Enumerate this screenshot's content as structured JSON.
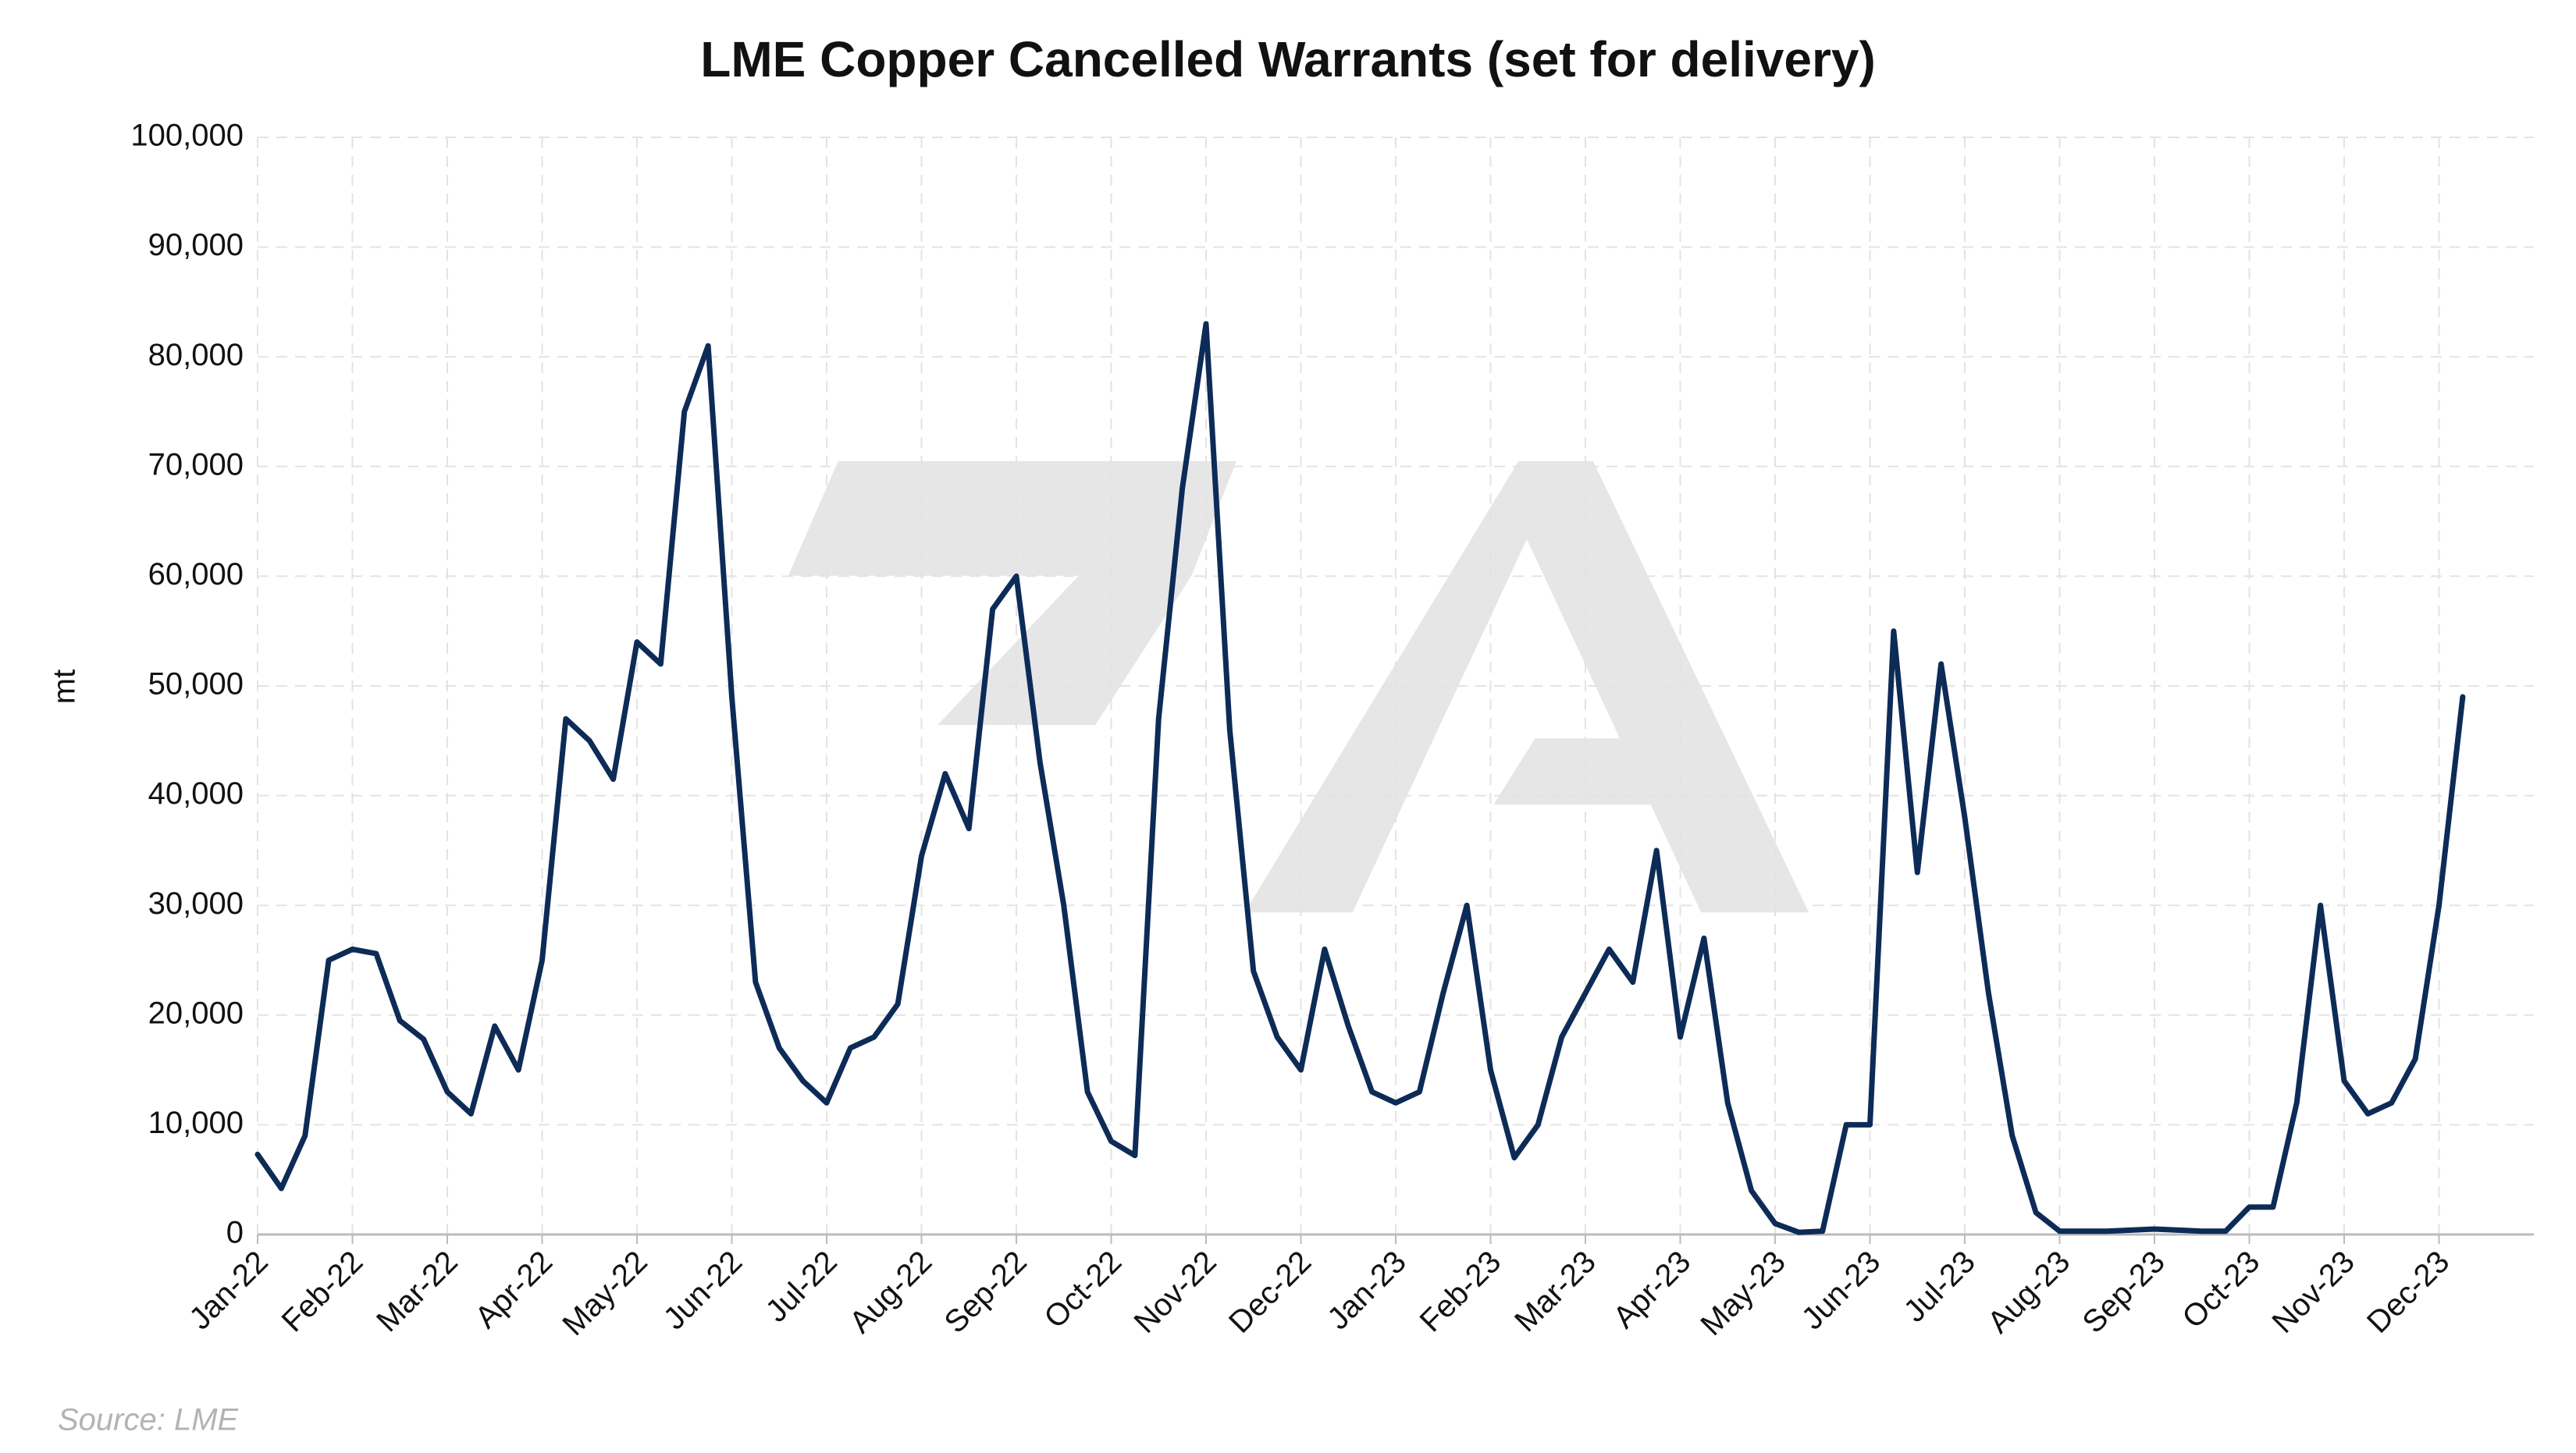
{
  "chart_data": {
    "type": "line",
    "title": "LME Copper Cancelled Warrants (set for delivery)",
    "y_label": "mt",
    "source": "Source: LME",
    "categories": [
      "Jan-22",
      null,
      null,
      null,
      "Feb-22",
      null,
      null,
      null,
      "Mar-22",
      null,
      null,
      null,
      "Apr-22",
      null,
      null,
      null,
      "May-22",
      null,
      null,
      null,
      "Jun-22",
      null,
      null,
      null,
      "Jul-22",
      null,
      null,
      null,
      "Aug-22",
      null,
      null,
      null,
      "Sep-22",
      null,
      null,
      null,
      "Oct-22",
      null,
      null,
      null,
      "Nov-22",
      null,
      null,
      null,
      "Dec-22",
      null,
      null,
      null,
      "Jan-23",
      null,
      null,
      null,
      "Feb-23",
      null,
      null,
      null,
      "Mar-23",
      null,
      null,
      null,
      "Apr-23",
      null,
      null,
      null,
      "May-23",
      null,
      null,
      null,
      "Jun-23",
      null,
      null,
      null,
      "Jul-23",
      null,
      null,
      null,
      "Aug-23",
      null,
      null,
      null,
      "Sep-23",
      null,
      null,
      null,
      "Oct-23",
      null,
      null,
      null,
      "Nov-23",
      null,
      null,
      null,
      "Dec-23",
      null
    ],
    "series": [
      {
        "name": "Cancelled warrants",
        "color": "#0d2b57",
        "values": [
          7300,
          4200,
          9000,
          25000,
          26000,
          25600,
          19500,
          17800,
          13000,
          11000,
          19000,
          15000,
          25000,
          47000,
          45000,
          41500,
          54000,
          52000,
          75000,
          81000,
          49000,
          23000,
          17000,
          14000,
          12000,
          17000,
          18000,
          21000,
          34500,
          42000,
          37000,
          57000,
          60000,
          43000,
          30000,
          13000,
          8500,
          7200,
          47000,
          68000,
          83000,
          46000,
          24000,
          18000,
          15000,
          26000,
          19000,
          13000,
          12000,
          13000,
          22000,
          30000,
          15000,
          7000,
          10000,
          18000,
          22000,
          26000,
          23000,
          35000,
          18000,
          27000,
          12000,
          4000,
          1000,
          200,
          300,
          10000,
          10000,
          55000,
          33000,
          52000,
          38000,
          22000,
          9000,
          2000,
          300,
          300,
          300,
          400,
          500,
          400,
          300,
          300,
          2500,
          2500,
          12000,
          30000,
          14000,
          11000,
          12000,
          16000,
          30000,
          49000
        ]
      }
    ],
    "ylim": [
      0,
      100000
    ],
    "yticks": [
      0,
      {
        "value": 10000,
        "label": "10,000"
      },
      {
        "value": 20000,
        "label": "20,000"
      },
      {
        "value": 30000,
        "label": "30,000"
      },
      {
        "value": 40000,
        "label": "40,000"
      },
      {
        "value": 50000,
        "label": "50,000"
      },
      {
        "value": 60000,
        "label": "60,000"
      },
      {
        "value": 70000,
        "label": "70,000"
      },
      {
        "value": 80000,
        "label": "80,000"
      },
      {
        "value": 90000,
        "label": "90,000"
      },
      {
        "value": 100000,
        "label": "100,000"
      }
    ],
    "grid": true
  }
}
